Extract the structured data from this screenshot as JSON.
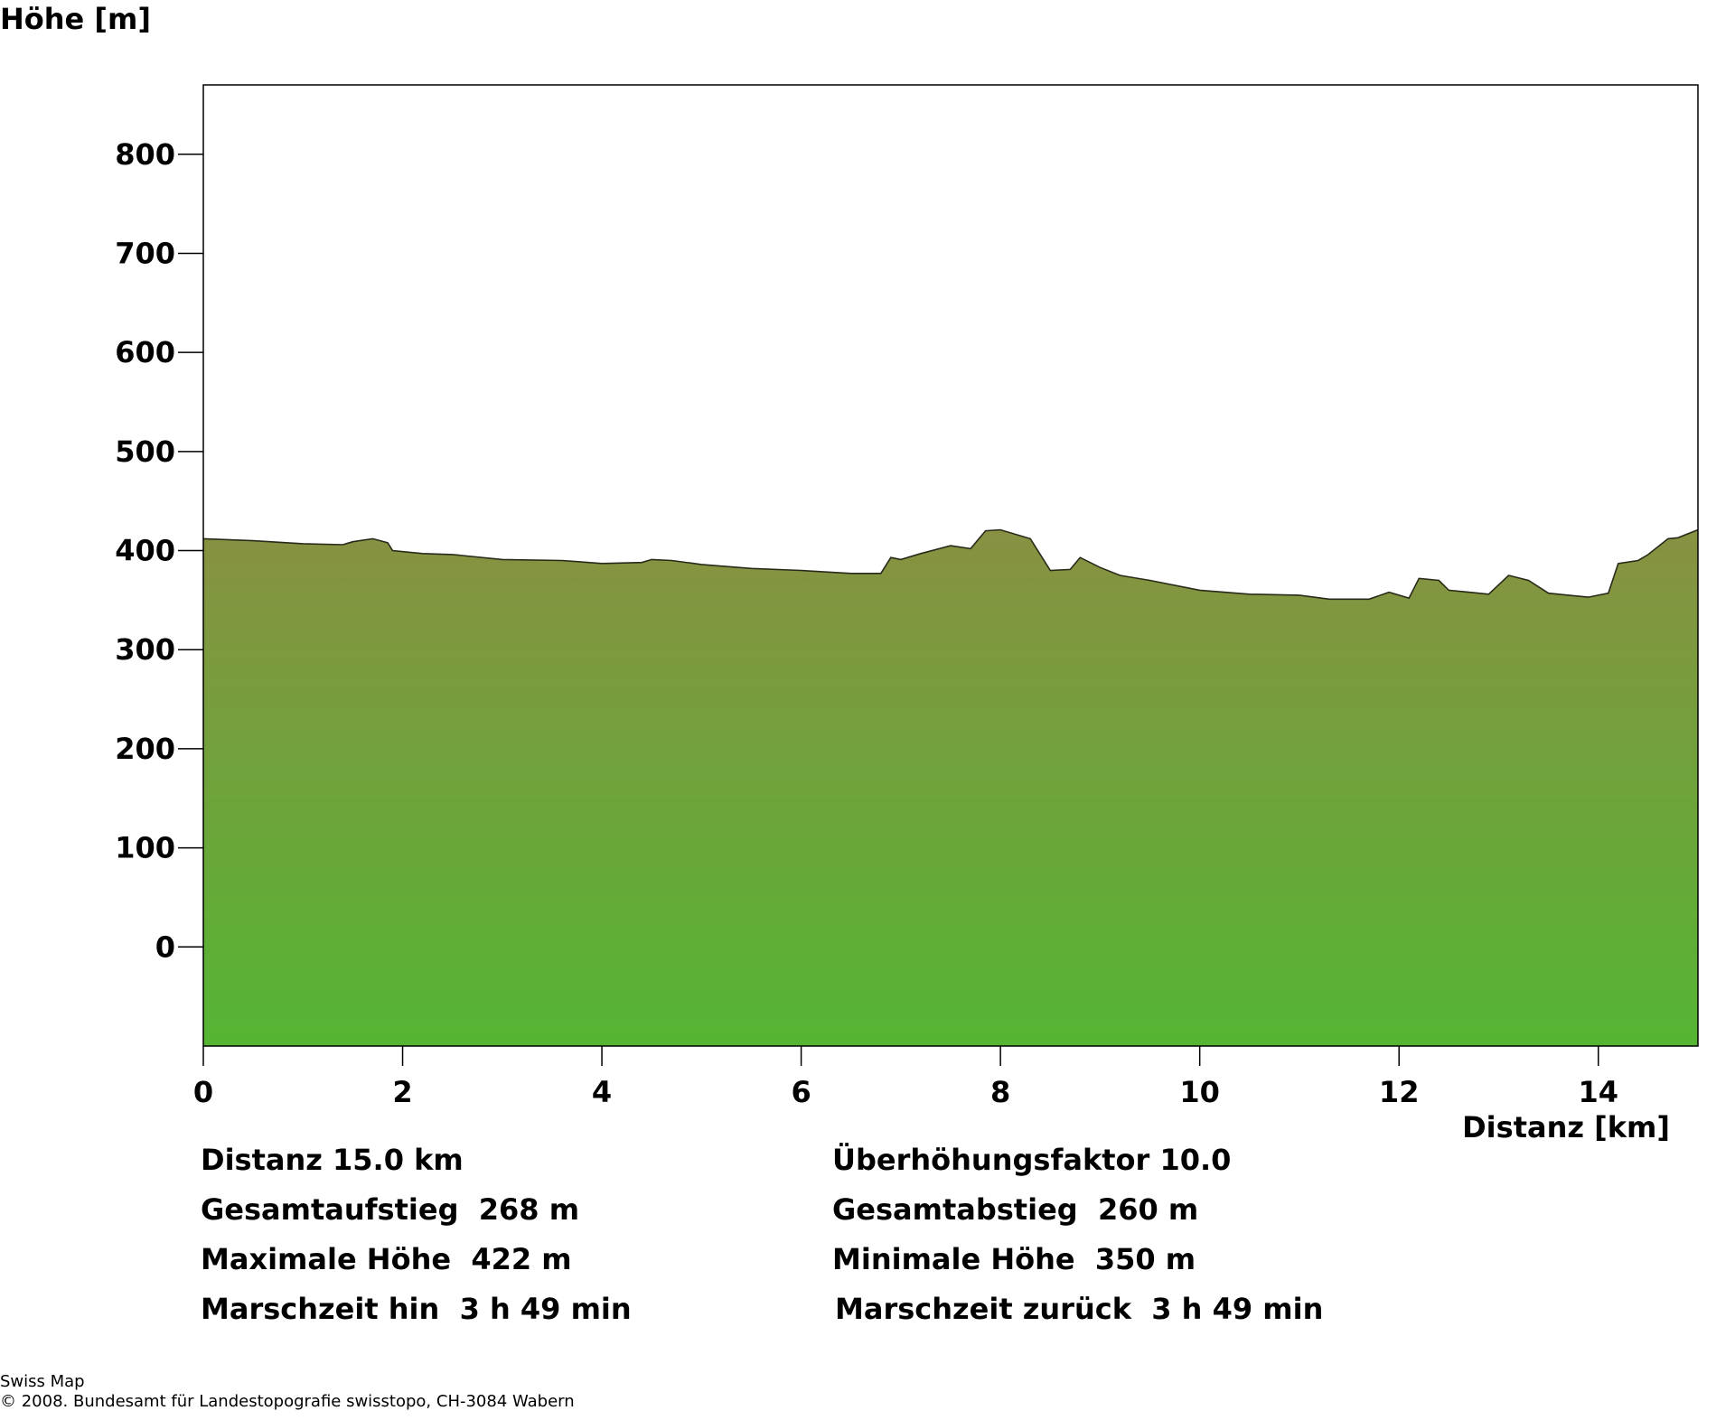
{
  "chart_data": {
    "type": "area",
    "ylabel": "Höhe [m]",
    "xlabel": "Distanz [km]",
    "xlim": [
      0,
      15
    ],
    "ylim": [
      -100,
      870
    ],
    "x_ticks": [
      0,
      2,
      4,
      6,
      8,
      10,
      12,
      14
    ],
    "y_ticks": [
      0,
      100,
      200,
      300,
      400,
      500,
      600,
      700,
      800
    ],
    "grid": false,
    "fill_top_color": "#889142",
    "fill_bottom_color": "#55b533",
    "line_color": "#2a2a1a",
    "profile": [
      [
        0,
        412
      ],
      [
        0.5,
        410
      ],
      [
        1.0,
        407
      ],
      [
        1.4,
        406
      ],
      [
        1.5,
        409
      ],
      [
        1.7,
        412
      ],
      [
        1.85,
        408
      ],
      [
        1.9,
        400
      ],
      [
        2.2,
        397
      ],
      [
        2.5,
        396
      ],
      [
        3.0,
        391
      ],
      [
        3.6,
        390
      ],
      [
        4.0,
        387
      ],
      [
        4.4,
        388
      ],
      [
        4.5,
        391
      ],
      [
        4.7,
        390
      ],
      [
        5.0,
        386
      ],
      [
        5.5,
        382
      ],
      [
        6.0,
        380
      ],
      [
        6.5,
        377
      ],
      [
        6.8,
        377
      ],
      [
        6.9,
        393
      ],
      [
        7.0,
        391
      ],
      [
        7.2,
        397
      ],
      [
        7.5,
        405
      ],
      [
        7.7,
        402
      ],
      [
        7.85,
        420
      ],
      [
        8.0,
        421
      ],
      [
        8.3,
        412
      ],
      [
        8.5,
        380
      ],
      [
        8.7,
        381
      ],
      [
        8.8,
        393
      ],
      [
        9.0,
        383
      ],
      [
        9.2,
        375
      ],
      [
        9.5,
        370
      ],
      [
        10.0,
        360
      ],
      [
        10.5,
        356
      ],
      [
        11.0,
        355
      ],
      [
        11.3,
        351
      ],
      [
        11.7,
        351
      ],
      [
        11.9,
        358
      ],
      [
        12.1,
        352
      ],
      [
        12.2,
        372
      ],
      [
        12.4,
        370
      ],
      [
        12.5,
        360
      ],
      [
        12.7,
        358
      ],
      [
        12.9,
        356
      ],
      [
        13.1,
        375
      ],
      [
        13.3,
        370
      ],
      [
        13.5,
        357
      ],
      [
        13.7,
        355
      ],
      [
        13.9,
        353
      ],
      [
        14.1,
        357
      ],
      [
        14.2,
        387
      ],
      [
        14.4,
        390
      ],
      [
        14.5,
        396
      ],
      [
        14.7,
        412
      ],
      [
        14.8,
        413
      ],
      [
        15.0,
        421
      ]
    ]
  },
  "stats": {
    "distanz": "Distanz 15.0 km",
    "ueberhoehung": "Überhöhungsfaktor 10.0",
    "aufstieg": "Gesamtaufstieg  268 m",
    "abstieg": "Gesamtabstieg  260 m",
    "max_hoehe": "Maximale Höhe  422 m",
    "min_hoehe": "Minimale Höhe  350 m",
    "zeit_hin": "Marschzeit hin  3 h 49 min",
    "zeit_zurueck": "Marschzeit zurück  3 h 49 min"
  },
  "credits": {
    "line1": "Swiss Map",
    "line2": "© 2008. Bundesamt für Landestopografie swisstopo, CH-3084 Wabern"
  }
}
